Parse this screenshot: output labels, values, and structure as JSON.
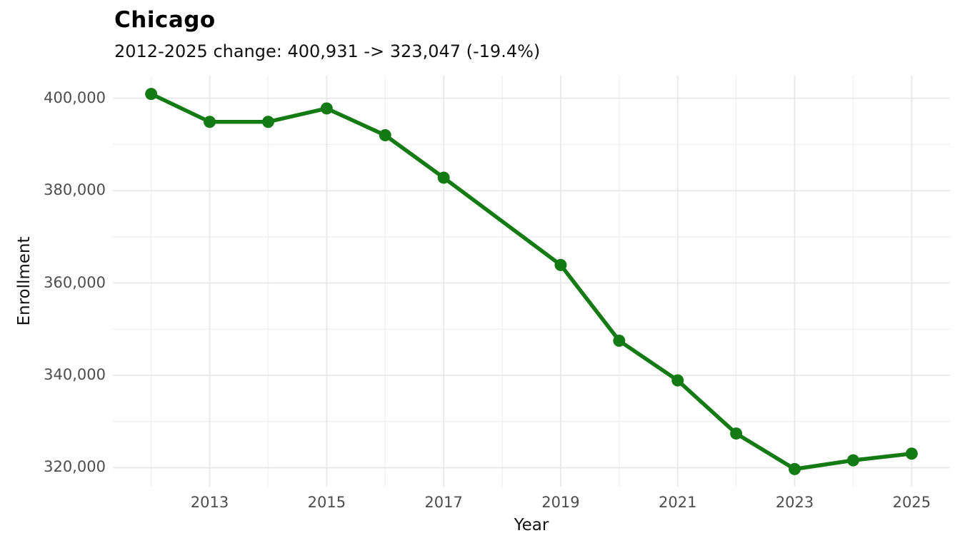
{
  "header": {
    "title": "Chicago",
    "subtitle": "2012-2025 change: 400,931 -> 323,047 (-19.4%)"
  },
  "chart_data": {
    "type": "line",
    "title": "Chicago",
    "subtitle": "2012-2025 change: 400,931 -> 323,047 (-19.4%)",
    "xlabel": "Year",
    "ylabel": "Enrollment",
    "grid": true,
    "legend": "none",
    "xlim": [
      2011.345,
      2025.655
    ],
    "ylim": [
      315900,
      404900
    ],
    "series": [
      {
        "name": "Chicago enrollment",
        "x": [
          2012,
          2013,
          2014,
          2015,
          2016,
          2017,
          2019,
          2020,
          2021,
          2022,
          2023,
          2024,
          2025
        ],
        "y": [
          400931,
          394900,
          394900,
          397800,
          392000,
          382800,
          363900,
          347500,
          338900,
          327400,
          319700,
          321600,
          323047
        ]
      }
    ],
    "x_ticks": [
      {
        "value": 2013,
        "label": "2013"
      },
      {
        "value": 2015,
        "label": "2015"
      },
      {
        "value": 2017,
        "label": "2017"
      },
      {
        "value": 2019,
        "label": "2019"
      },
      {
        "value": 2021,
        "label": "2021"
      },
      {
        "value": 2023,
        "label": "2023"
      },
      {
        "value": 2025,
        "label": "2025"
      }
    ],
    "y_ticks": [
      {
        "value": 320000,
        "label": "320,000"
      },
      {
        "value": 340000,
        "label": "340,000"
      },
      {
        "value": 360000,
        "label": "360,000"
      },
      {
        "value": 380000,
        "label": "380,000"
      },
      {
        "value": 400000,
        "label": "400,000"
      }
    ],
    "x_minor": [
      2012,
      2014,
      2016,
      2018,
      2020,
      2022,
      2024
    ],
    "y_minor": [
      330000,
      350000,
      370000,
      390000
    ],
    "colors": {
      "line": "#147a14",
      "marker": "#147a14",
      "grid_major": "#e9e9e9",
      "grid_minor": "#f1f1f1",
      "tick_label": "#4d4d4d",
      "axis_title": "#111111",
      "background": "#ffffff"
    }
  }
}
